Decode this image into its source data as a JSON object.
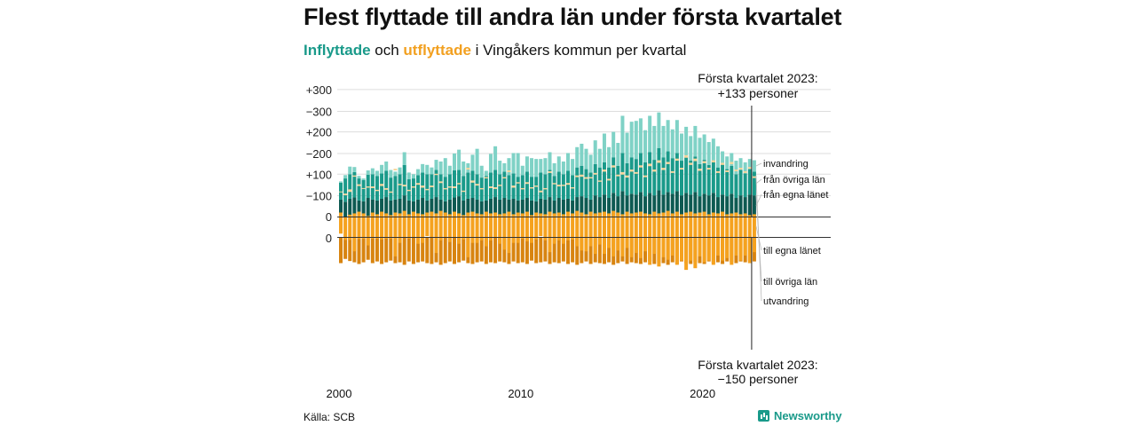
{
  "title": "Flest flyttade till andra län under första kvartalet",
  "subtitle": {
    "in_label": "Inflyttade",
    "mid": " och ",
    "out_label": "utflyttade",
    "rest": " i Vingåkers kommun per kvartal"
  },
  "source": "Källa: SCB",
  "brand": "Newsworthy",
  "colors": {
    "in_local": "#0e5a52",
    "in_other": "#1a9a8a",
    "in_immig": "#7fd2c6",
    "out_local": "#d88410",
    "out_other": "#f5a21f",
    "out_emig": "#f8d59a"
  },
  "chart_data": {
    "type": "bar",
    "x_start": 2000,
    "quarters_per_year": 4,
    "xticks": [
      "2000",
      "2010",
      "2020"
    ],
    "yticks_top": [
      "+300",
      "+200",
      "+100",
      "0"
    ],
    "yticks_bottom": [
      "0",
      "−100",
      "−200",
      "−300"
    ],
    "ylim_top": [
      0,
      300
    ],
    "ylim_bottom": [
      -300,
      0
    ],
    "grid": true,
    "annotations": {
      "top": [
        "Första kvartalet 2023:",
        "+133 personer"
      ],
      "bottom": [
        "Första kvartalet 2023:",
        "−150 personer"
      ]
    },
    "inflow_series": [
      {
        "name": "från egna länet",
        "values": [
          40,
          35,
          42,
          45,
          38,
          36,
          44,
          40,
          38,
          42,
          46,
          38,
          40,
          42,
          50,
          38,
          36,
          40,
          44,
          38,
          42,
          46,
          40,
          36,
          40,
          45,
          48,
          38,
          42,
          44,
          40,
          36,
          38,
          42,
          46,
          40,
          44,
          40,
          42,
          38,
          40,
          44,
          38,
          36,
          42,
          40,
          46,
          38,
          44,
          40,
          42,
          38,
          46,
          48,
          44,
          40,
          50,
          46,
          52,
          44,
          56,
          48,
          60,
          50,
          54,
          52,
          58,
          48,
          56,
          50,
          62,
          52,
          58,
          54,
          60,
          50,
          56,
          52,
          58,
          48,
          54,
          50,
          56,
          46,
          52,
          48,
          54,
          44,
          50,
          46,
          52,
          50
        ]
      },
      {
        "name": "från övriga län",
        "values": [
          40,
          55,
          58,
          60,
          52,
          50,
          55,
          60,
          58,
          60,
          62,
          54,
          56,
          58,
          72,
          50,
          54,
          58,
          60,
          62,
          58,
          64,
          60,
          58,
          60,
          64,
          62,
          58,
          62,
          64,
          60,
          56,
          58,
          62,
          64,
          60,
          62,
          58,
          60,
          56,
          58,
          62,
          56,
          58,
          62,
          60,
          64,
          58,
          62,
          60,
          66,
          60,
          70,
          72,
          68,
          64,
          74,
          70,
          76,
          72,
          84,
          72,
          90,
          76,
          86,
          84,
          92,
          80,
          96,
          84,
          100,
          88,
          96,
          84,
          90,
          82,
          86,
          80,
          84,
          76,
          80,
          72,
          76,
          70,
          72,
          64,
          66,
          56,
          60,
          56,
          60,
          56
        ]
      },
      {
        "name": "invandring",
        "values": [
          3,
          8,
          18,
          12,
          6,
          4,
          10,
          14,
          12,
          20,
          22,
          18,
          10,
          16,
          30,
          16,
          10,
          14,
          20,
          22,
          16,
          24,
          30,
          44,
          20,
          40,
          48,
          34,
          22,
          38,
          60,
          28,
          12,
          44,
          56,
          32,
          20,
          40,
          48,
          56,
          22,
          36,
          44,
          42,
          32,
          38,
          42,
          30,
          36,
          30,
          42,
          38,
          48,
          52,
          48,
          42,
          56,
          44,
          68,
          48,
          60,
          54,
          88,
          72,
          84,
          90,
          82,
          76,
          86,
          80,
          84,
          74,
          74,
          68,
          78,
          64,
          70,
          58,
          72,
          62,
          60,
          54,
          52,
          50,
          30,
          30,
          30,
          32,
          28,
          26,
          24,
          27
        ]
      }
    ],
    "outflow_series": [
      {
        "name": "till egna länet",
        "values": [
          60,
          50,
          55,
          58,
          62,
          58,
          52,
          60,
          56,
          62,
          58,
          54,
          60,
          58,
          64,
          56,
          62,
          58,
          56,
          60,
          62,
          58,
          64,
          60,
          56,
          62,
          58,
          54,
          60,
          62,
          58,
          56,
          62,
          58,
          60,
          56,
          58,
          62,
          56,
          60,
          58,
          62,
          54,
          60,
          58,
          56,
          62,
          58,
          60,
          56,
          62,
          58,
          64,
          60,
          56,
          62,
          58,
          60,
          62,
          58,
          64,
          60,
          56,
          62,
          58,
          60,
          62,
          58,
          56,
          62,
          58,
          60,
          64,
          58,
          62,
          56,
          60,
          62,
          58,
          60,
          62,
          56,
          60,
          58,
          62,
          56,
          58,
          60,
          56,
          58,
          54,
          56
        ]
      },
      {
        "name": "till övriga län",
        "values": [
          50,
          55,
          60,
          90,
          65,
          60,
          70,
          62,
          58,
          66,
          60,
          56,
          104,
          70,
          62,
          58,
          60,
          72,
          68,
          56,
          62,
          94,
          70,
          58,
          66,
          60,
          72,
          58,
          106,
          74,
          70,
          62,
          82,
          64,
          60,
          70,
          86,
          98,
          68,
          72,
          60,
          70,
          66,
          64,
          54,
          62,
          96,
          72,
          66,
          70,
          68,
          62,
          84,
          90,
          88,
          82,
          96,
          76,
          100,
          82,
          108,
          90,
          100,
          86,
          104,
          96,
          110,
          90,
          120,
          100,
          126,
          106,
          116,
          100,
          126,
          110,
          136,
          116,
          130,
          104,
          120,
          110,
          124,
          100,
          116,
          104,
          122,
          102,
          110,
          100,
          114,
          90
        ]
      },
      {
        "name": "utvandring",
        "values": [
          2,
          4,
          6,
          3,
          4,
          2,
          3,
          4,
          3,
          5,
          4,
          3,
          4,
          3,
          4,
          3,
          3,
          4,
          5,
          3,
          4,
          3,
          4,
          3,
          3,
          4,
          3,
          3,
          4,
          5,
          4,
          3,
          3,
          4,
          4,
          3,
          3,
          4,
          5,
          3,
          3,
          4,
          3,
          3,
          4,
          3,
          4,
          3,
          4,
          3,
          4,
          3,
          4,
          5,
          4,
          3,
          4,
          3,
          5,
          4,
          5,
          4,
          6,
          5,
          5,
          4,
          5,
          4,
          6,
          5,
          6,
          5,
          5,
          4,
          5,
          4,
          6,
          5,
          6,
          5,
          5,
          4,
          5,
          4,
          5,
          4,
          5,
          4,
          4,
          4,
          4,
          4
        ]
      }
    ]
  }
}
